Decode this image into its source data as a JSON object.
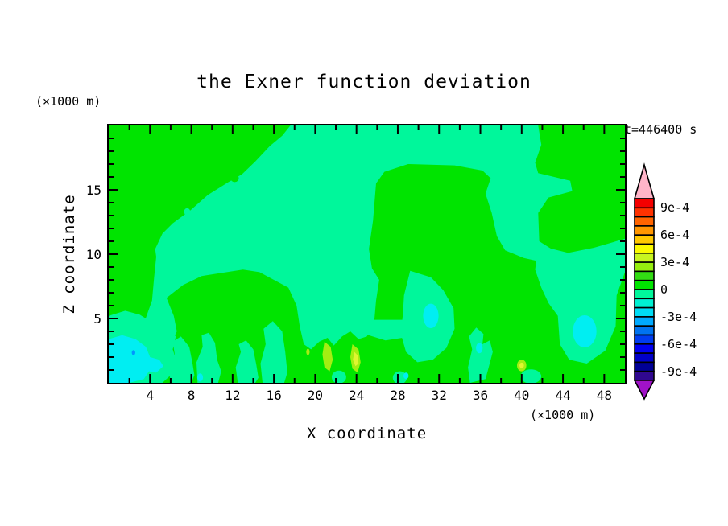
{
  "title": "the Exner function deviation",
  "time_label": "t=446400 s",
  "axes": {
    "x": {
      "label": "X coordinate",
      "unit": "(×1000 m)",
      "min": 0,
      "max": 50,
      "tick_labels": [
        4,
        8,
        12,
        16,
        20,
        24,
        28,
        32,
        36,
        40,
        44,
        48
      ],
      "minor_step": 2
    },
    "z": {
      "label": "Z coordinate",
      "unit": "(×1000 m)",
      "min": 0,
      "max": 20,
      "tick_labels": [
        5,
        10,
        15
      ],
      "minor_step": 1
    }
  },
  "colorbar": {
    "arrow_top_color": "#ffb4c8",
    "arrow_bottom_color": "#a012c8",
    "cell_colors": [
      "#f40000",
      "#ff3200",
      "#ff6400",
      "#ff9600",
      "#ffc800",
      "#fafa00",
      "#c8f520",
      "#96ee10",
      "#32dc14",
      "#00e400",
      "#00f79b",
      "#00f0d2",
      "#00dcf5",
      "#00aaff",
      "#0073f0",
      "#003cf0",
      "#0000f0",
      "#0000c8",
      "#000096",
      "#300890"
    ],
    "labels": [
      {
        "text": "9e-4",
        "k": 1
      },
      {
        "text": "6e-4",
        "k": 4
      },
      {
        "text": "3e-4",
        "k": 7
      },
      {
        "text": "0",
        "k": 10
      },
      {
        "text": "-3e-4",
        "k": 13
      },
      {
        "text": "-6e-4",
        "k": 16
      },
      {
        "text": "-9e-4",
        "k": 19
      }
    ]
  },
  "chart_data": {
    "type": "heatmap",
    "subtype": "filled-contour",
    "title": "the Exner function deviation",
    "xlabel": "X coordinate",
    "ylabel": "Z coordinate",
    "xlim": [
      0,
      50
    ],
    "ylim": [
      0,
      20
    ],
    "time": "t=446400 s",
    "contour_interval": 0.0001,
    "labeled_levels": [
      0.0009,
      0.0006,
      0.0003,
      0,
      -0.0003,
      -0.0006,
      -0.0009
    ],
    "field_colors": {
      "green": "#00e400",
      "teal": "#00f79b",
      "cyan": "#00eef2",
      "blue": "#0096ff",
      "greenyellow": "#a4ee12",
      "yellow": "#e0f630"
    },
    "field_summary": "Background green (0..1e-4); large spring-green regions (-1e-4..0) over upper-middle, left and right; cyan spots (-2e-4..-1e-4) near the surface; small yellow-green streaks (+2e-4..3e-4) near x=20-24 km; cyan/blue minimum at lower-left corner.",
    "shapes": [
      {
        "kind": "polygon",
        "name": "upper-teal-mass",
        "color": "#00f79b",
        "points": [
          [
            17.6,
            20
          ],
          [
            41.6,
            20
          ],
          [
            41.9,
            18.5
          ],
          [
            41.3,
            17.1
          ],
          [
            41.6,
            16.3
          ],
          [
            44.7,
            15.7
          ],
          [
            44.9,
            14.9
          ],
          [
            42.6,
            14.4
          ],
          [
            41.6,
            13.2
          ],
          [
            41.7,
            11.0
          ],
          [
            43.1,
            10.3
          ],
          [
            41.9,
            9.4
          ],
          [
            40.2,
            9.7
          ],
          [
            38.4,
            10.3
          ],
          [
            37.6,
            11.4
          ],
          [
            37.1,
            13.2
          ],
          [
            36.5,
            14.7
          ],
          [
            37.0,
            15.9
          ],
          [
            36.2,
            16.5
          ],
          [
            33.5,
            16.9
          ],
          [
            29.0,
            17.0
          ],
          [
            26.7,
            16.4
          ],
          [
            25.9,
            15.5
          ],
          [
            25.6,
            12.6
          ],
          [
            25.2,
            10.4
          ],
          [
            25.5,
            8.9
          ],
          [
            26.2,
            8.0
          ],
          [
            25.9,
            6.4
          ],
          [
            25.7,
            4.6
          ],
          [
            25.0,
            3.6
          ],
          [
            24.2,
            3.4
          ],
          [
            23.4,
            4.0
          ],
          [
            22.6,
            3.6
          ],
          [
            21.8,
            2.9
          ],
          [
            21.2,
            3.5
          ],
          [
            20.4,
            3.2
          ],
          [
            19.6,
            2.6
          ],
          [
            18.9,
            3.0
          ],
          [
            18.5,
            4.4
          ],
          [
            18.2,
            6.0
          ],
          [
            17.4,
            7.4
          ],
          [
            16.0,
            8.0
          ],
          [
            14.6,
            8.6
          ],
          [
            13.0,
            8.8
          ],
          [
            9.0,
            8.3
          ],
          [
            7.2,
            7.6
          ],
          [
            5.6,
            6.6
          ],
          [
            6.3,
            5.2
          ],
          [
            6.6,
            4.0
          ],
          [
            6.0,
            3.0
          ],
          [
            5.2,
            2.6
          ],
          [
            4.2,
            3.2
          ],
          [
            3.4,
            4.6
          ],
          [
            4.2,
            6.4
          ],
          [
            4.4,
            8.2
          ],
          [
            4.6,
            9.8
          ],
          [
            4.5,
            10.4
          ],
          [
            5.2,
            11.6
          ],
          [
            6.2,
            12.4
          ],
          [
            7.9,
            13.4
          ],
          [
            9.6,
            14.6
          ],
          [
            11.6,
            15.6
          ],
          [
            12.9,
            16.2
          ],
          [
            14.2,
            17.2
          ],
          [
            15.6,
            18.4
          ],
          [
            16.8,
            19.2
          ]
        ]
      },
      {
        "kind": "polygon",
        "name": "right-teal-mass",
        "color": "#00f79b",
        "points": [
          [
            42.0,
            10.6
          ],
          [
            44.5,
            10.1
          ],
          [
            47.0,
            10.5
          ],
          [
            50,
            11.2
          ],
          [
            50,
            8.6
          ],
          [
            49.2,
            6.8
          ],
          [
            49.1,
            4.4
          ],
          [
            48.1,
            2.5
          ],
          [
            46.3,
            1.5
          ],
          [
            44.6,
            1.8
          ],
          [
            43.7,
            3.0
          ],
          [
            43.5,
            5.2
          ],
          [
            42.6,
            6.2
          ],
          [
            41.9,
            7.4
          ],
          [
            41.3,
            8.8
          ],
          [
            41.5,
            10.0
          ]
        ]
      },
      {
        "kind": "polygon",
        "name": "center-low-teal-blob",
        "color": "#00f79b",
        "points": [
          [
            29.2,
            8.7
          ],
          [
            31.2,
            8.2
          ],
          [
            32.4,
            7.2
          ],
          [
            33.4,
            5.8
          ],
          [
            33.5,
            4.2
          ],
          [
            32.7,
            2.7
          ],
          [
            31.4,
            1.8
          ],
          [
            29.9,
            1.6
          ],
          [
            28.8,
            2.4
          ],
          [
            28.3,
            3.8
          ],
          [
            28.5,
            5.4
          ],
          [
            28.6,
            6.8
          ]
        ]
      },
      {
        "kind": "polygon",
        "name": "teal-bridge",
        "color": "#00f79b",
        "points": [
          [
            24.8,
            4.9
          ],
          [
            29.3,
            4.9
          ],
          [
            29.3,
            3.6
          ],
          [
            26.8,
            3.3
          ],
          [
            24.8,
            3.8
          ]
        ]
      },
      {
        "kind": "polygon",
        "name": "finger-a",
        "color": "#00f79b",
        "points": [
          [
            6.0,
            0
          ],
          [
            5.8,
            1.2
          ],
          [
            6.4,
            2.2
          ],
          [
            6.2,
            3.2
          ],
          [
            7.0,
            3.6
          ],
          [
            7.8,
            2.8
          ],
          [
            8.1,
            1.6
          ],
          [
            8.3,
            0.6
          ],
          [
            8.0,
            0
          ]
        ]
      },
      {
        "kind": "polygon",
        "name": "finger-b",
        "color": "#00f79b",
        "points": [
          [
            8.6,
            0
          ],
          [
            8.5,
            1.6
          ],
          [
            9.1,
            2.8
          ],
          [
            9.0,
            3.7
          ],
          [
            9.7,
            3.9
          ],
          [
            10.3,
            3.1
          ],
          [
            10.5,
            1.8
          ],
          [
            10.9,
            0.9
          ],
          [
            10.6,
            0
          ]
        ]
      },
      {
        "kind": "polygon",
        "name": "finger-c",
        "color": "#00f79b",
        "points": [
          [
            12.5,
            0
          ],
          [
            12.3,
            1.2
          ],
          [
            12.8,
            2.4
          ],
          [
            12.6,
            3.0
          ],
          [
            13.3,
            3.3
          ],
          [
            14.0,
            2.6
          ],
          [
            14.3,
            1.4
          ],
          [
            14.5,
            0.4
          ],
          [
            14.2,
            0
          ]
        ]
      },
      {
        "kind": "polygon",
        "name": "finger-d",
        "color": "#00f79b",
        "points": [
          [
            14.9,
            0
          ],
          [
            14.7,
            1.5
          ],
          [
            15.2,
            3.0
          ],
          [
            15.0,
            4.2
          ],
          [
            15.9,
            4.8
          ],
          [
            16.8,
            4.0
          ],
          [
            17.1,
            2.4
          ],
          [
            17.3,
            0.8
          ],
          [
            17.0,
            0
          ]
        ]
      },
      {
        "kind": "polygon",
        "name": "finger-e",
        "color": "#00f79b",
        "points": [
          [
            35.0,
            0
          ],
          [
            34.8,
            1.2
          ],
          [
            35.2,
            2.6
          ],
          [
            34.9,
            3.6
          ],
          [
            35.6,
            4.3
          ],
          [
            36.3,
            3.8
          ],
          [
            36.2,
            3.0
          ],
          [
            36.9,
            3.3
          ],
          [
            37.2,
            2.4
          ],
          [
            36.8,
            1.2
          ],
          [
            36.5,
            0.3
          ]
        ]
      },
      {
        "kind": "polygon",
        "name": "bottomleft-teal-ring",
        "color": "#00f79b",
        "points": [
          [
            0,
            5.2
          ],
          [
            1.6,
            5.6
          ],
          [
            3.0,
            5.3
          ],
          [
            4.4,
            4.6
          ],
          [
            5.6,
            4.4
          ],
          [
            6.5,
            3.6
          ],
          [
            6.2,
            2.6
          ],
          [
            6.6,
            1.6
          ],
          [
            6.0,
            0.6
          ],
          [
            5.2,
            0
          ],
          [
            0,
            0
          ]
        ]
      },
      {
        "kind": "ellipse",
        "name": "teal-spot-a",
        "color": "#00f79b",
        "cx": 22.3,
        "cz": 0.45,
        "rx": 0.7,
        "rz": 0.5
      },
      {
        "kind": "ellipse",
        "name": "teal-spot-b",
        "color": "#00f79b",
        "cx": 28.2,
        "cz": 0.4,
        "rx": 0.68,
        "rz": 0.5
      },
      {
        "kind": "ellipse",
        "name": "teal-spot-c",
        "color": "#00f79b",
        "cx": 40.9,
        "cz": 0.5,
        "rx": 1.0,
        "rz": 0.55
      },
      {
        "kind": "ellipse",
        "name": "teal-spot-d",
        "color": "#00f79b",
        "cx": 7.6,
        "cz": 13.3,
        "rx": 0.3,
        "rz": 0.28
      },
      {
        "kind": "polygon",
        "name": "bottomleft-cyan-core",
        "color": "#00eef2",
        "points": [
          [
            0,
            3.4
          ],
          [
            1.3,
            3.7
          ],
          [
            2.6,
            3.4
          ],
          [
            3.6,
            2.8
          ],
          [
            4.0,
            2.0
          ],
          [
            4.9,
            1.8
          ],
          [
            5.3,
            1.3
          ],
          [
            4.6,
            0.8
          ],
          [
            3.9,
            0.9
          ],
          [
            3.4,
            0.3
          ],
          [
            2.0,
            0
          ],
          [
            0,
            0
          ]
        ]
      },
      {
        "kind": "ellipse",
        "name": "cyan-spot-center",
        "color": "#00eef2",
        "cx": 31.2,
        "cz": 5.2,
        "rx": 0.75,
        "rz": 0.95
      },
      {
        "kind": "ellipse",
        "name": "cyan-spot-right",
        "color": "#00eef2",
        "cx": 46.1,
        "cz": 4.0,
        "rx": 1.15,
        "rz": 1.25
      },
      {
        "kind": "ellipse",
        "name": "cyan-spot-mid",
        "color": "#00eef2",
        "cx": 35.9,
        "cz": 2.7,
        "rx": 0.32,
        "rz": 0.4
      },
      {
        "kind": "ellipse",
        "name": "cyan-spot-left-small",
        "color": "#00eef2",
        "cx": 8.85,
        "cz": 0.42,
        "rx": 0.28,
        "rz": 0.32
      },
      {
        "kind": "ellipse",
        "name": "cyan-spot-bottom-small",
        "color": "#00eef2",
        "cx": 28.8,
        "cz": 0.55,
        "rx": 0.25,
        "rz": 0.25
      },
      {
        "kind": "ellipse",
        "name": "blue-minimum-dot",
        "color": "#0096ff",
        "cx": 2.4,
        "cz": 2.35,
        "rx": 0.17,
        "rz": 0.2
      },
      {
        "kind": "polygon",
        "name": "yellow-streak-1",
        "color": "#a4ee12",
        "points": [
          [
            20.9,
            3.2
          ],
          [
            21.5,
            2.8
          ],
          [
            21.7,
            1.8
          ],
          [
            21.4,
            0.9
          ],
          [
            20.9,
            1.2
          ],
          [
            20.7,
            2.2
          ]
        ]
      },
      {
        "kind": "polygon",
        "name": "yellow-streak-2",
        "color": "#a4ee12",
        "points": [
          [
            23.6,
            3.0
          ],
          [
            24.2,
            2.6
          ],
          [
            24.4,
            1.6
          ],
          [
            24.1,
            0.8
          ],
          [
            23.6,
            1.1
          ],
          [
            23.4,
            2.0
          ]
        ]
      },
      {
        "kind": "polygon",
        "name": "yellow-streak-2-core",
        "color": "#e0f630",
        "points": [
          [
            23.8,
            2.4
          ],
          [
            24.15,
            2.1
          ],
          [
            24.2,
            1.5
          ],
          [
            23.9,
            1.3
          ],
          [
            23.65,
            1.8
          ]
        ]
      },
      {
        "kind": "ellipse",
        "name": "yellow-dot-right",
        "color": "#a4ee12",
        "cx": 40.0,
        "cz": 1.35,
        "rx": 0.45,
        "rz": 0.45
      },
      {
        "kind": "ellipse",
        "name": "yellow-dot-right-core",
        "color": "#e0f630",
        "cx": 40.0,
        "cz": 1.35,
        "rx": 0.22,
        "rz": 0.22
      },
      {
        "kind": "ellipse",
        "name": "yellow-fleck",
        "color": "#a4ee12",
        "cx": 19.3,
        "cz": 2.4,
        "rx": 0.16,
        "rz": 0.25
      },
      {
        "kind": "ellipse",
        "name": "green-speck-diagonal",
        "color": "#00e400",
        "cx": 12.2,
        "cz": 15.9,
        "rx": 0.4,
        "rz": 0.3
      },
      {
        "kind": "ellipse",
        "name": "green-speck-channel",
        "color": "#00e400",
        "cx": 41.3,
        "cz": 4.5,
        "rx": 0.3,
        "rz": 0.45
      }
    ]
  }
}
